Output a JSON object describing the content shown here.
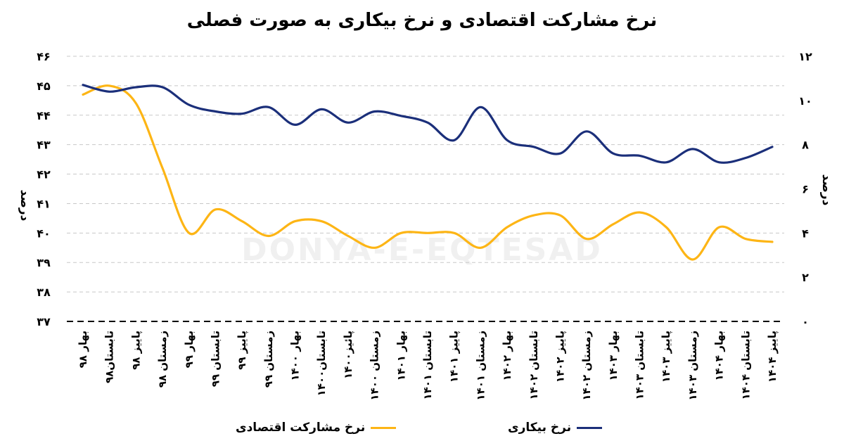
{
  "chart_data": {
    "type": "line",
    "title": "نرخ مشارکت اقتصادی و نرخ بیکاری به صورت فصلی",
    "watermark": "DONYA-E-EQTESAD",
    "ylabel_left": "درصد",
    "ylabel_right": "درصد",
    "left_ticks": [
      "۳۷",
      "۳۸",
      "۳۹",
      "۴۰",
      "۴۱",
      "۴۲",
      "۴۳",
      "۴۴",
      "۴۵",
      "۴۶"
    ],
    "right_ticks": [
      "۰",
      "۲",
      "۴",
      "۶",
      "۸",
      "۱۰",
      "۱۲"
    ],
    "ylim_left": [
      37,
      46
    ],
    "ylim_right": [
      0,
      12
    ],
    "grid": "horizontal-dashed",
    "legend_position": "bottom",
    "categories": [
      "بهار ۹۸",
      "تابستان۹۸",
      "پاییز ۹۸",
      "زمستان ۹۸",
      "بهار ۹۹",
      "تابستان ۹۹",
      "پاییز ۹۹",
      "زمستان ۹۹",
      "بهار ۱۴۰۰",
      "تابستان۱۴۰۰",
      "پائیز۱۴۰۰",
      "زمستان ۱۴۰۰",
      "بهار ۱۴۰۱",
      "تابستان ۱۴۰۱",
      "پاییز ۱۴۰۱",
      "زمستان ۱۴۰۱",
      "بهار ۱۴۰۲",
      "تابستان ۱۴۰۲",
      "پاییز ۱۴۰۲",
      "زمستان ۱۴۰۲",
      "بهار ۱۴۰۳",
      "تابستان ۱۴۰۳",
      "پاییز ۱۴۰۳",
      "زمستان ۱۴۰۳",
      "بهار ۱۴۰۴",
      "تابستان ۱۴۰۴",
      "پاییز ۱۴۰۴"
    ],
    "series": [
      {
        "name": "نرخ مشارکت اقتصادی",
        "axis": "left",
        "color": "#FDB515",
        "values": [
          44.7,
          45.0,
          44.4,
          42.2,
          40.0,
          40.8,
          40.4,
          39.9,
          40.4,
          40.4,
          39.9,
          39.5,
          40.0,
          40.0,
          40.0,
          39.5,
          40.2,
          40.6,
          40.6,
          39.8,
          40.3,
          40.7,
          40.2,
          39.1,
          40.2,
          39.8,
          39.7
        ]
      },
      {
        "name": "نرخ بیکاری",
        "axis": "right",
        "color": "#1B2F7A",
        "values": [
          10.7,
          10.4,
          10.6,
          10.6,
          9.8,
          9.5,
          9.4,
          9.7,
          8.9,
          9.6,
          9.0,
          9.5,
          9.3,
          9.0,
          8.2,
          9.7,
          8.2,
          7.9,
          7.6,
          8.6,
          7.6,
          7.5,
          7.2,
          7.8,
          7.2,
          7.4,
          7.9
        ]
      }
    ]
  }
}
